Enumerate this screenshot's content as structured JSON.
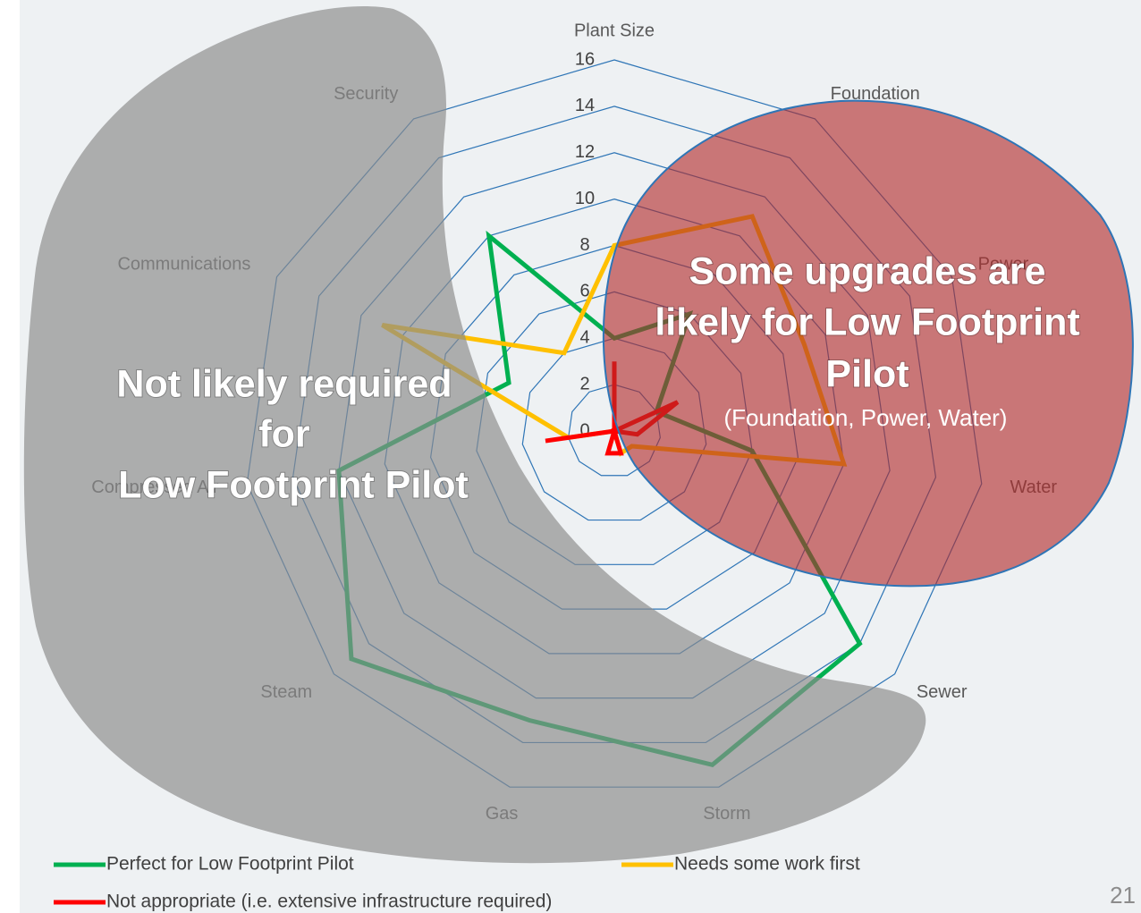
{
  "chart_data": {
    "type": "radar",
    "categories": [
      "Plant Size",
      "Foundation",
      "Power",
      "Water",
      "Sewer",
      "Storm",
      "Gas",
      "Steam",
      "Compressed Air",
      "Communications",
      "Security"
    ],
    "rlim": [
      0,
      16
    ],
    "rticks": [
      0,
      2,
      4,
      6,
      8,
      10,
      12,
      14,
      16
    ],
    "grid_color": "#2e75b6",
    "series": [
      {
        "name": "Perfect for Low Footprint Pilot",
        "color": "#00b050",
        "values": [
          4,
          6,
          2,
          6,
          14,
          15,
          13,
          15,
          12,
          5,
          10
        ]
      },
      {
        "name": "Needs some work first",
        "color": "#ffc000",
        "values": [
          8,
          11,
          9,
          10,
          1,
          1,
          0,
          0,
          2,
          11,
          4
        ]
      },
      {
        "name": "Not appropriate (i.e. extensive infrastructure required)",
        "color": "#ff0000",
        "values": [
          3,
          0,
          3,
          1,
          0,
          1,
          1,
          0,
          3,
          0,
          0
        ]
      }
    ],
    "annotations": [
      {
        "lines": [
          "Not likely required",
          "for",
          "Low Footprint Pilot"
        ]
      },
      {
        "lines": [
          "Some upgrades are",
          "likely for Low Footprint",
          "Pilot"
        ],
        "note": "(Foundation, Power, Water)"
      }
    ]
  },
  "page_number": "21"
}
